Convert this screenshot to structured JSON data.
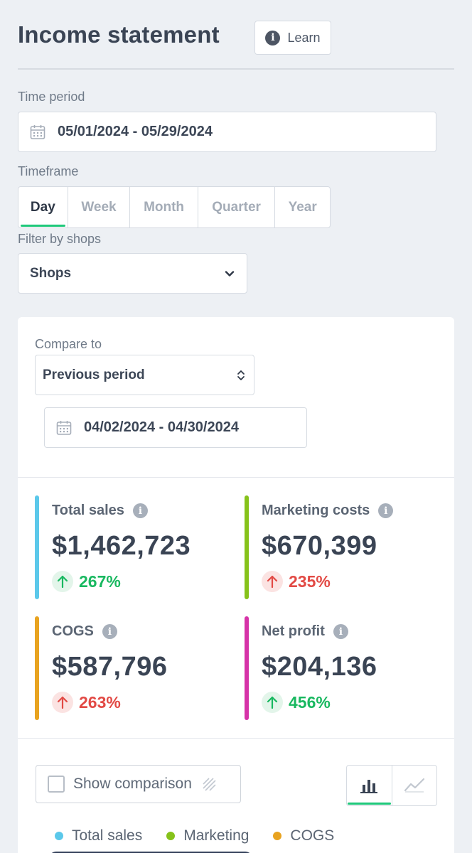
{
  "header": {
    "title": "Income statement",
    "learn_label": "Learn",
    "info_glyph": "i"
  },
  "time_period": {
    "label": "Time period",
    "value": "05/01/2024 - 05/29/2024",
    "icon": "calendar-icon"
  },
  "timeframe": {
    "label": "Timeframe",
    "options": [
      "Day",
      "Week",
      "Month",
      "Quarter",
      "Year"
    ],
    "selected": "Day"
  },
  "shop_filter": {
    "label": "Filter by shops",
    "value": "Shops",
    "icon": "chevron-down-icon"
  },
  "compare": {
    "label": "Compare to",
    "value": "Previous period",
    "icon": "chevron-up-down-icon",
    "date_range": "04/02/2024 - 04/30/2024"
  },
  "metrics": [
    {
      "label": "Total sales",
      "value": "$1,462,723",
      "change": "267%",
      "direction": "up",
      "sentiment": "positive",
      "accent": "#5bc8ea"
    },
    {
      "label": "Marketing costs",
      "value": "$670,399",
      "change": "235%",
      "direction": "up",
      "sentiment": "negative",
      "accent": "#86c21a"
    },
    {
      "label": "COGS",
      "value": "$587,796",
      "change": "263%",
      "direction": "up",
      "sentiment": "negative",
      "accent": "#e8a320"
    },
    {
      "label": "Net profit",
      "value": "$204,136",
      "change": "456%",
      "direction": "up",
      "sentiment": "positive",
      "accent": "#d633a8"
    }
  ],
  "chart_controls": {
    "show_comparison_label": "Show comparison",
    "show_comparison_checked": false,
    "view_options": [
      "bar-chart-icon",
      "line-chart-icon"
    ],
    "selected_view": "bar-chart-icon"
  },
  "legend": [
    {
      "label": "Total sales",
      "color": "#5bc8ea"
    },
    {
      "label": "Marketing",
      "color": "#86c21a"
    },
    {
      "label": "COGS",
      "color": "#e8a320"
    }
  ],
  "colors": {
    "accent_green": "#1fc87a",
    "positive": "#19b860",
    "negative": "#e24a45"
  }
}
